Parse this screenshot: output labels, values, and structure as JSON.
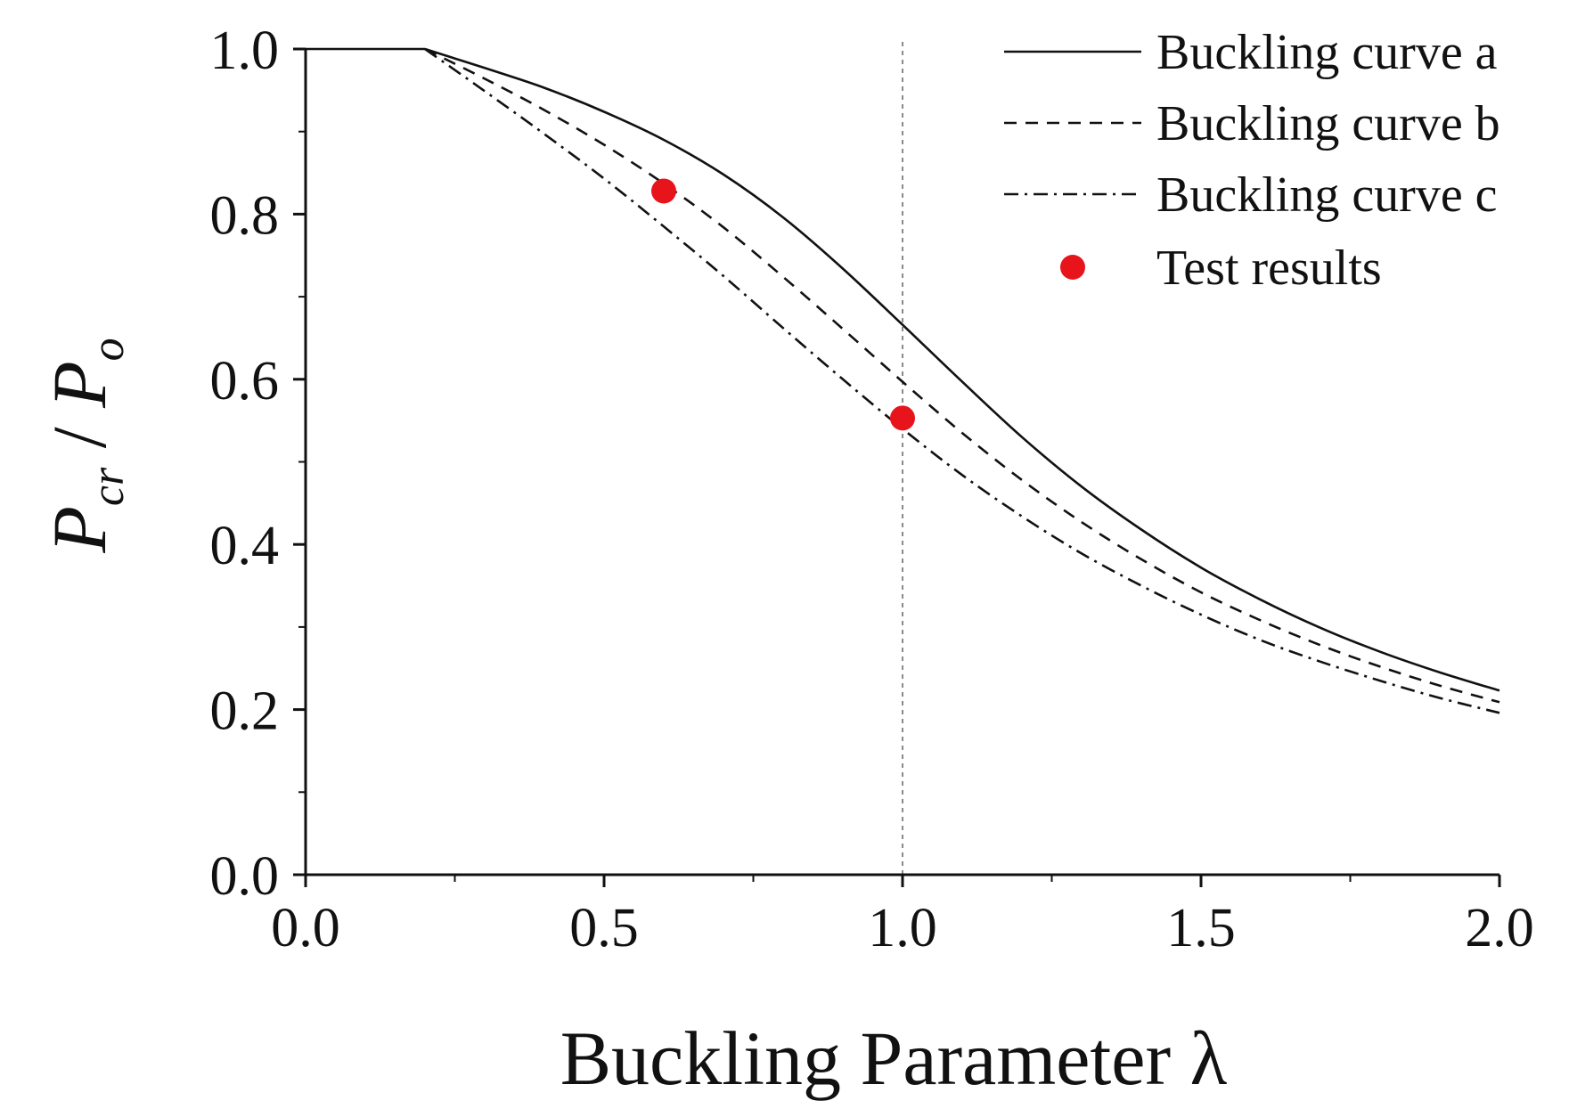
{
  "chart_data": {
    "type": "line",
    "xlabel": "Buckling Parameter λ",
    "ylabel": {
      "main1": "P",
      "sub1": "cr",
      "separator": " / ",
      "main2": "P",
      "sub2": "o"
    },
    "xlim": [
      0.0,
      2.0
    ],
    "ylim": [
      0.0,
      1.0
    ],
    "x_ticks": [
      "0.0",
      "0.5",
      "1.0",
      "1.5",
      "2.0"
    ],
    "y_ticks": [
      "0.0",
      "0.2",
      "0.4",
      "0.6",
      "0.8",
      "1.0"
    ],
    "grid": false,
    "legend_position": "top-right",
    "reference_line_x": 1.0,
    "series": [
      {
        "name": "Buckling curve a",
        "style": "solid",
        "x": [
          0.0,
          0.2,
          0.3,
          0.4,
          0.5,
          0.6,
          0.7,
          0.8,
          0.9,
          1.0,
          1.1,
          1.2,
          1.3,
          1.4,
          1.5,
          1.6,
          1.7,
          1.8,
          1.9,
          2.0
        ],
        "y": [
          1.0,
          1.0,
          0.977,
          0.953,
          0.924,
          0.89,
          0.848,
          0.796,
          0.734,
          0.666,
          0.597,
          0.53,
          0.47,
          0.418,
          0.372,
          0.333,
          0.299,
          0.27,
          0.245,
          0.223
        ]
      },
      {
        "name": "Buckling curve b",
        "style": "dashed",
        "x": [
          0.0,
          0.2,
          0.3,
          0.4,
          0.5,
          0.6,
          0.7,
          0.8,
          0.9,
          1.0,
          1.1,
          1.2,
          1.3,
          1.4,
          1.5,
          1.6,
          1.7,
          1.8,
          1.9,
          2.0
        ],
        "y": [
          1.0,
          1.0,
          0.964,
          0.926,
          0.884,
          0.837,
          0.784,
          0.724,
          0.661,
          0.597,
          0.535,
          0.478,
          0.427,
          0.382,
          0.342,
          0.308,
          0.278,
          0.252,
          0.229,
          0.209
        ]
      },
      {
        "name": "Buckling curve c",
        "style": "dashdot",
        "x": [
          0.0,
          0.2,
          0.3,
          0.4,
          0.5,
          0.6,
          0.7,
          0.8,
          0.9,
          1.0,
          1.1,
          1.2,
          1.3,
          1.4,
          1.5,
          1.6,
          1.7,
          1.8,
          1.9,
          2.0
        ],
        "y": [
          1.0,
          1.0,
          0.949,
          0.897,
          0.843,
          0.785,
          0.725,
          0.662,
          0.6,
          0.54,
          0.484,
          0.434,
          0.389,
          0.35,
          0.315,
          0.284,
          0.258,
          0.235,
          0.214,
          0.196
        ]
      },
      {
        "name": "Test results",
        "style": "marker",
        "color": "#e8141c",
        "x": [
          0.6,
          1.0
        ],
        "y": [
          0.828,
          0.553
        ]
      }
    ]
  }
}
